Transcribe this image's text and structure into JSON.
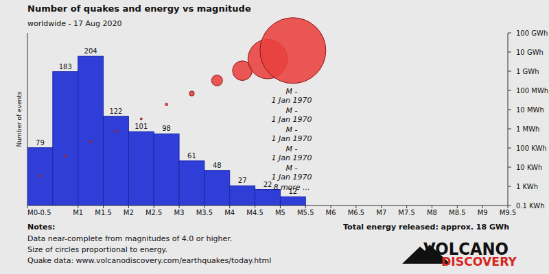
{
  "chart_data": [
    {
      "type": "histogram",
      "title": "Number of quakes and energy vs magnitude",
      "subtitle": "worldwide - 17 Aug 2020",
      "y_label": "Number of events",
      "bins": [
        0,
        0.5,
        1,
        1.5,
        2,
        2.5,
        3,
        3.5,
        4,
        4.5,
        5,
        5.5
      ],
      "values": [
        79,
        183,
        204,
        122,
        101,
        98,
        61,
        48,
        27,
        22,
        12
      ],
      "color": "#2f3ed6",
      "xlim": [
        0,
        9.5
      ],
      "xticks": [
        {
          "value": 0,
          "label": "M0-0.5"
        },
        {
          "value": 1,
          "label": "M1"
        },
        {
          "value": 1.5,
          "label": "M1.5"
        },
        {
          "value": 2,
          "label": "M2"
        },
        {
          "value": 2.5,
          "label": "M2.5"
        },
        {
          "value": 3,
          "label": "M3"
        },
        {
          "value": 3.5,
          "label": "M3.5"
        },
        {
          "value": 4,
          "label": "M4"
        },
        {
          "value": 4.5,
          "label": "M4.5"
        },
        {
          "value": 5,
          "label": "M5"
        },
        {
          "value": 5.5,
          "label": "M5.5"
        },
        {
          "value": 6,
          "label": "M6"
        },
        {
          "value": 6.5,
          "label": "M6.5"
        },
        {
          "value": 7,
          "label": "M7"
        },
        {
          "value": 7.5,
          "label": "M7.5"
        },
        {
          "value": 8,
          "label": "M8"
        },
        {
          "value": 8.5,
          "label": "M8.5"
        },
        {
          "value": 9,
          "label": "M9"
        },
        {
          "value": 9.5,
          "label": "M9.5"
        }
      ],
      "ylim": [
        0,
        236
      ],
      "data_labels": true,
      "tick_labels": "x",
      "grid": false
    },
    {
      "type": "bubble",
      "x": [
        0.25,
        0.75,
        1.25,
        1.75,
        2.25,
        2.75,
        3.25,
        3.75,
        4.25,
        4.75,
        5.25
      ],
      "values": [
        3.5,
        38,
        215,
        740,
        3300,
        18600,
        69000,
        330000,
        1070000,
        4300000,
        12000000
      ],
      "color": "#e8413f",
      "xlim": [
        0,
        9.5
      ],
      "ylim": [
        0.1,
        100000000
      ],
      "yticks": [
        {
          "value": 0.1,
          "label": "0.1 KWh"
        },
        {
          "value": 1,
          "label": "1 KWh"
        },
        {
          "value": 10,
          "label": "10 KWh"
        },
        {
          "value": 100,
          "label": "100 KWh"
        },
        {
          "value": 1000,
          "label": "1 MWh"
        },
        {
          "value": 10000,
          "label": "10 MWh"
        },
        {
          "value": 100000,
          "label": "100 MWh"
        },
        {
          "value": 1000000,
          "label": "1 GWh"
        },
        {
          "value": 10000000,
          "label": "10 GWh"
        },
        {
          "value": 100000000,
          "label": "100 GWh"
        }
      ],
      "log": "y",
      "tick_labels": "y",
      "grid": false,
      "annotations": [
        "M -",
        "1 Jan 1970",
        "M -",
        "1 Jan 1970",
        "M -",
        "1 Jan 1970",
        "M -",
        "1 Jan 1970",
        "M -",
        "1 Jan 1970",
        "8 more ..."
      ]
    }
  ],
  "notes": {
    "title": "Notes:",
    "lines": [
      "Data near-complete from magnitudes of 4.0 or higher.",
      "Size of circles proportional to energy.",
      "Quake data: www.volcanodiscovery.com/earthquakes/today.html"
    ],
    "total": "Total energy released: approx. 18 GWh"
  },
  "logo": [
    "VOLCANO",
    "DISCOVERY"
  ]
}
